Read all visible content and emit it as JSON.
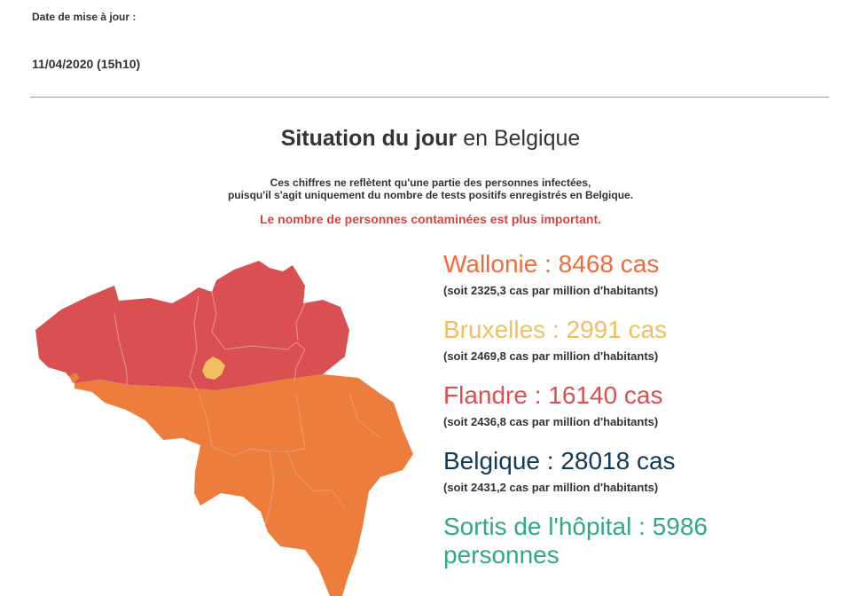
{
  "header": {
    "update_label": "Date de mise à jour :",
    "update_date": "11/04/2020 (15h10)"
  },
  "title": {
    "strong": "Situation du jour",
    "rest": " en Belgique"
  },
  "note": {
    "line1": "Ces chiffres ne reflètent qu'une partie des personnes infectées,",
    "line2": "puisqu'il s'agit uniquement du nombre de tests positifs enregistrés en Belgique."
  },
  "warning": "Le nombre de personnes contaminées est plus important.",
  "colors": {
    "wallonie": "#f26b3a",
    "bruxelles": "#f0c060",
    "flandre": "#d94f52",
    "belgique": "#123a58",
    "sortis": "#2fab7c"
  },
  "stats": [
    {
      "id": "wallonie",
      "value": "Wallonie : 8468 cas",
      "sub": "(soit 2325,3 cas par million d'habitants)"
    },
    {
      "id": "bruxelles",
      "value": "Bruxelles : 2991 cas",
      "sub": "(soit 2469,8 cas par million d'habitants)"
    },
    {
      "id": "flandre",
      "value": "Flandre : 16140 cas",
      "sub": "(soit 2436,8 cas par million d'habitants)"
    },
    {
      "id": "belgique",
      "value": "Belgique : 28018 cas",
      "sub": "(soit 2431,2 cas par million d'habitants)"
    }
  ],
  "sortis": {
    "line1": "Sortis de l'hôpital : 5986",
    "line2": "personnes"
  }
}
